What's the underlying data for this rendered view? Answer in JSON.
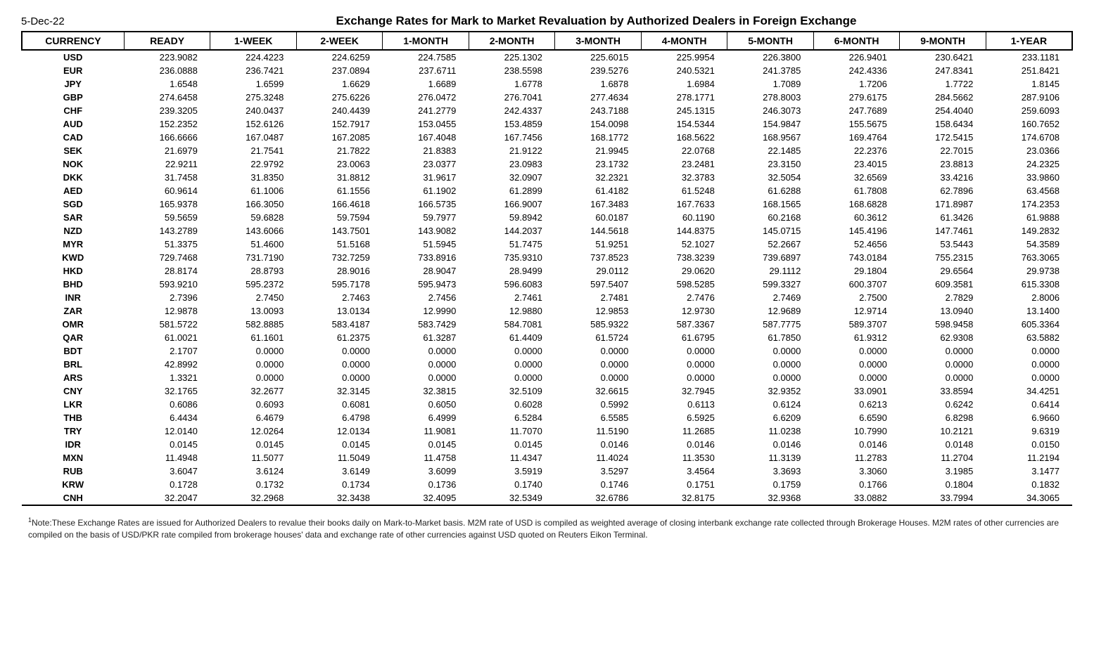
{
  "date": "5-Dec-22",
  "title": "Exchange Rates for Mark to Market Revaluation by Authorized Dealers in Foreign Exchange",
  "columns": [
    "CURRENCY",
    "READY",
    "1-WEEK",
    "2-WEEK",
    "1-MONTH",
    "2-MONTH",
    "3-MONTH",
    "4-MONTH",
    "5-MONTH",
    "6-MONTH",
    "9-MONTH",
    "1-YEAR"
  ],
  "rows": [
    [
      "USD",
      "223.9082",
      "224.4223",
      "224.6259",
      "224.7585",
      "225.1302",
      "225.6015",
      "225.9954",
      "226.3800",
      "226.9401",
      "230.6421",
      "233.1181"
    ],
    [
      "EUR",
      "236.0888",
      "236.7421",
      "237.0894",
      "237.6711",
      "238.5598",
      "239.5276",
      "240.5321",
      "241.3785",
      "242.4336",
      "247.8341",
      "251.8421"
    ],
    [
      "JPY",
      "1.6548",
      "1.6599",
      "1.6629",
      "1.6689",
      "1.6778",
      "1.6878",
      "1.6984",
      "1.7089",
      "1.7206",
      "1.7722",
      "1.8145"
    ],
    [
      "GBP",
      "274.6458",
      "275.3248",
      "275.6226",
      "276.0472",
      "276.7041",
      "277.4634",
      "278.1771",
      "278.8003",
      "279.6175",
      "284.5662",
      "287.9106"
    ],
    [
      "CHF",
      "239.3205",
      "240.0437",
      "240.4439",
      "241.2779",
      "242.4337",
      "243.7188",
      "245.1315",
      "246.3073",
      "247.7689",
      "254.4040",
      "259.6093"
    ],
    [
      "AUD",
      "152.2352",
      "152.6126",
      "152.7917",
      "153.0455",
      "153.4859",
      "154.0098",
      "154.5344",
      "154.9847",
      "155.5675",
      "158.6434",
      "160.7652"
    ],
    [
      "CAD",
      "166.6666",
      "167.0487",
      "167.2085",
      "167.4048",
      "167.7456",
      "168.1772",
      "168.5622",
      "168.9567",
      "169.4764",
      "172.5415",
      "174.6708"
    ],
    [
      "SEK",
      "21.6979",
      "21.7541",
      "21.7822",
      "21.8383",
      "21.9122",
      "21.9945",
      "22.0768",
      "22.1485",
      "22.2376",
      "22.7015",
      "23.0366"
    ],
    [
      "NOK",
      "22.9211",
      "22.9792",
      "23.0063",
      "23.0377",
      "23.0983",
      "23.1732",
      "23.2481",
      "23.3150",
      "23.4015",
      "23.8813",
      "24.2325"
    ],
    [
      "DKK",
      "31.7458",
      "31.8350",
      "31.8812",
      "31.9617",
      "32.0907",
      "32.2321",
      "32.3783",
      "32.5054",
      "32.6569",
      "33.4216",
      "33.9860"
    ],
    [
      "AED",
      "60.9614",
      "61.1006",
      "61.1556",
      "61.1902",
      "61.2899",
      "61.4182",
      "61.5248",
      "61.6288",
      "61.7808",
      "62.7896",
      "63.4568"
    ],
    [
      "SGD",
      "165.9378",
      "166.3050",
      "166.4618",
      "166.5735",
      "166.9007",
      "167.3483",
      "167.7633",
      "168.1565",
      "168.6828",
      "171.8987",
      "174.2353"
    ],
    [
      "SAR",
      "59.5659",
      "59.6828",
      "59.7594",
      "59.7977",
      "59.8942",
      "60.0187",
      "60.1190",
      "60.2168",
      "60.3612",
      "61.3426",
      "61.9888"
    ],
    [
      "NZD",
      "143.2789",
      "143.6066",
      "143.7501",
      "143.9082",
      "144.2037",
      "144.5618",
      "144.8375",
      "145.0715",
      "145.4196",
      "147.7461",
      "149.2832"
    ],
    [
      "MYR",
      "51.3375",
      "51.4600",
      "51.5168",
      "51.5945",
      "51.7475",
      "51.9251",
      "52.1027",
      "52.2667",
      "52.4656",
      "53.5443",
      "54.3589"
    ],
    [
      "KWD",
      "729.7468",
      "731.7190",
      "732.7259",
      "733.8916",
      "735.9310",
      "737.8523",
      "738.3239",
      "739.6897",
      "743.0184",
      "755.2315",
      "763.3065"
    ],
    [
      "HKD",
      "28.8174",
      "28.8793",
      "28.9016",
      "28.9047",
      "28.9499",
      "29.0112",
      "29.0620",
      "29.1112",
      "29.1804",
      "29.6564",
      "29.9738"
    ],
    [
      "BHD",
      "593.9210",
      "595.2372",
      "595.7178",
      "595.9473",
      "596.6083",
      "597.5407",
      "598.5285",
      "599.3327",
      "600.3707",
      "609.3581",
      "615.3308"
    ],
    [
      "INR",
      "2.7396",
      "2.7450",
      "2.7463",
      "2.7456",
      "2.7461",
      "2.7481",
      "2.7476",
      "2.7469",
      "2.7500",
      "2.7829",
      "2.8006"
    ],
    [
      "ZAR",
      "12.9878",
      "13.0093",
      "13.0134",
      "12.9990",
      "12.9880",
      "12.9853",
      "12.9730",
      "12.9689",
      "12.9714",
      "13.0940",
      "13.1400"
    ],
    [
      "OMR",
      "581.5722",
      "582.8885",
      "583.4187",
      "583.7429",
      "584.7081",
      "585.9322",
      "587.3367",
      "587.7775",
      "589.3707",
      "598.9458",
      "605.3364"
    ],
    [
      "QAR",
      "61.0021",
      "61.1601",
      "61.2375",
      "61.3287",
      "61.4409",
      "61.5724",
      "61.6795",
      "61.7850",
      "61.9312",
      "62.9308",
      "63.5882"
    ],
    [
      "BDT",
      "2.1707",
      "0.0000",
      "0.0000",
      "0.0000",
      "0.0000",
      "0.0000",
      "0.0000",
      "0.0000",
      "0.0000",
      "0.0000",
      "0.0000"
    ],
    [
      "BRL",
      "42.8992",
      "0.0000",
      "0.0000",
      "0.0000",
      "0.0000",
      "0.0000",
      "0.0000",
      "0.0000",
      "0.0000",
      "0.0000",
      "0.0000"
    ],
    [
      "ARS",
      "1.3321",
      "0.0000",
      "0.0000",
      "0.0000",
      "0.0000",
      "0.0000",
      "0.0000",
      "0.0000",
      "0.0000",
      "0.0000",
      "0.0000"
    ],
    [
      "CNY",
      "32.1765",
      "32.2677",
      "32.3145",
      "32.3815",
      "32.5109",
      "32.6615",
      "32.7945",
      "32.9352",
      "33.0901",
      "33.8594",
      "34.4251"
    ],
    [
      "LKR",
      "0.6086",
      "0.6093",
      "0.6081",
      "0.6050",
      "0.6028",
      "0.5992",
      "0.6113",
      "0.6124",
      "0.6213",
      "0.6242",
      "0.6414"
    ],
    [
      "THB",
      "6.4434",
      "6.4679",
      "6.4798",
      "6.4999",
      "6.5284",
      "6.5585",
      "6.5925",
      "6.6209",
      "6.6590",
      "6.8298",
      "6.9660"
    ],
    [
      "TRY",
      "12.0140",
      "12.0264",
      "12.0134",
      "11.9081",
      "11.7070",
      "11.5190",
      "11.2685",
      "11.0238",
      "10.7990",
      "10.2121",
      "9.6319"
    ],
    [
      "IDR",
      "0.0145",
      "0.0145",
      "0.0145",
      "0.0145",
      "0.0145",
      "0.0146",
      "0.0146",
      "0.0146",
      "0.0146",
      "0.0148",
      "0.0150"
    ],
    [
      "MXN",
      "11.4948",
      "11.5077",
      "11.5049",
      "11.4758",
      "11.4347",
      "11.4024",
      "11.3530",
      "11.3139",
      "11.2783",
      "11.2704",
      "11.2194"
    ],
    [
      "RUB",
      "3.6047",
      "3.6124",
      "3.6149",
      "3.6099",
      "3.5919",
      "3.5297",
      "3.4564",
      "3.3693",
      "3.3060",
      "3.1985",
      "3.1477"
    ],
    [
      "KRW",
      "0.1728",
      "0.1732",
      "0.1734",
      "0.1736",
      "0.1740",
      "0.1746",
      "0.1751",
      "0.1759",
      "0.1766",
      "0.1804",
      "0.1832"
    ],
    [
      "CNH",
      "32.2047",
      "32.2968",
      "32.3438",
      "32.4095",
      "32.5349",
      "32.6786",
      "32.8175",
      "32.9368",
      "33.0882",
      "33.7994",
      "34.3065"
    ]
  ],
  "footnote": "Note:These Exchange Rates are issued for Authorized Dealers to revalue their books daily on Mark-to-Market basis. M2M rate of USD is compiled as weighted average of closing interbank exchange rate collected through Brokerage Houses. M2M rates of other currencies are compiled on the basis of USD/PKR rate compiled from brokerage houses' data and exchange rate of other currencies against USD quoted on Reuters Eikon Terminal."
}
